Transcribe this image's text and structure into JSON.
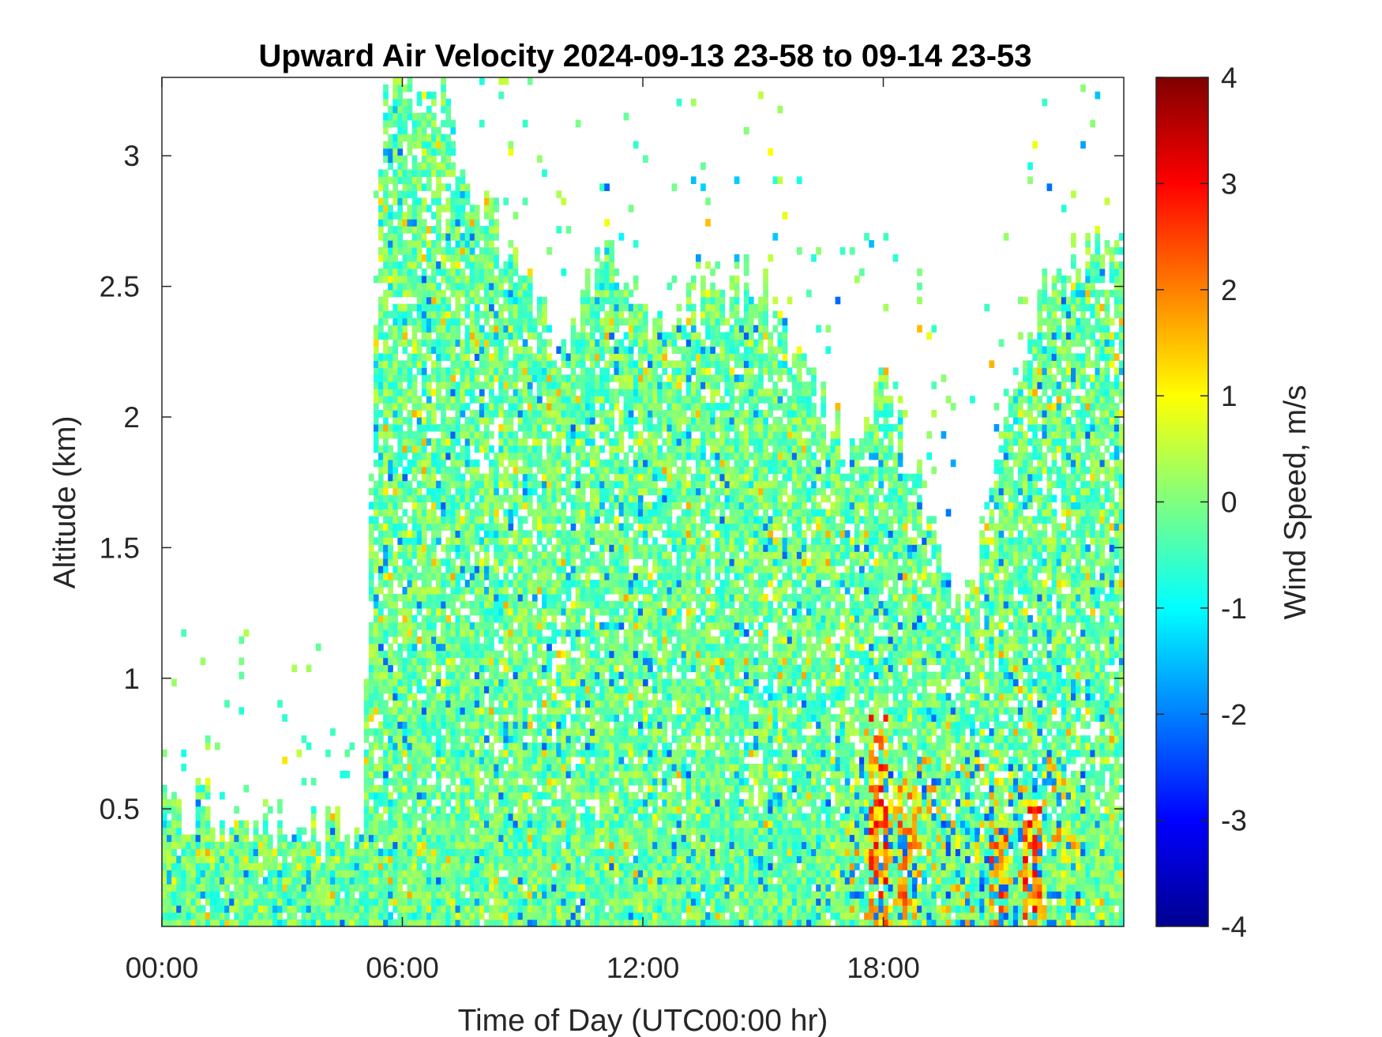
{
  "chart_data": {
    "type": "heatmap",
    "title": "Upward Air Velocity 2024-09-13 23-58 to 09-14 23-53",
    "xlabel": "Time of Day (UTC00:00 hr)",
    "ylabel": "Altitude (km)",
    "colorbar_label": "Wind Speed, m/s",
    "colormap": "jet",
    "xlim_hours": [
      0,
      24
    ],
    "ylim": [
      0.05,
      3.3
    ],
    "clim": [
      -4,
      4
    ],
    "x_ticks": [
      0,
      6,
      12,
      18
    ],
    "x_tick_labels": [
      "00:00",
      "06:00",
      "12:00",
      "18:00"
    ],
    "y_ticks": [
      0.5,
      1,
      1.5,
      2,
      2.5,
      3
    ],
    "y_tick_labels": [
      "0.5",
      "1",
      "1.5",
      "2",
      "2.5",
      "3"
    ],
    "colorbar_ticks": [
      4,
      3,
      2,
      1,
      0,
      -1,
      -2,
      -3,
      -4
    ],
    "colorbar_tick_labels": [
      "4",
      "3",
      "2",
      "1",
      "0",
      "-1",
      "-2",
      "-3",
      "-4"
    ],
    "data_top_km_by_hour": [
      [
        0,
        0.55
      ],
      [
        1,
        0.5
      ],
      [
        2,
        0.45
      ],
      [
        3,
        0.45
      ],
      [
        4,
        0.4
      ],
      [
        5,
        0.4
      ],
      [
        5.5,
        3.3
      ],
      [
        6,
        3.3
      ],
      [
        7,
        3.2
      ],
      [
        8,
        2.8
      ],
      [
        9,
        2.6
      ],
      [
        10,
        2.2
      ],
      [
        11,
        2.6
      ],
      [
        12,
        2.4
      ],
      [
        13,
        2.4
      ],
      [
        14,
        2.5
      ],
      [
        15,
        2.5
      ],
      [
        16,
        2.2
      ],
      [
        17,
        1.9
      ],
      [
        18,
        2.1
      ],
      [
        19,
        1.7
      ],
      [
        20,
        1.2
      ],
      [
        21,
        1.9
      ],
      [
        22,
        2.5
      ],
      [
        23,
        2.6
      ],
      [
        24,
        2.6
      ]
    ],
    "strong_updraft_hours": [
      {
        "hour": 17.9,
        "max_speed": 3.2,
        "top_km": 0.85
      },
      {
        "hour": 18.6,
        "max_speed": 2.8,
        "top_km": 0.6
      },
      {
        "hour": 20.9,
        "max_speed": 3.0,
        "top_km": 0.4
      },
      {
        "hour": 21.7,
        "max_speed": 3.2,
        "top_km": 0.55
      }
    ]
  }
}
